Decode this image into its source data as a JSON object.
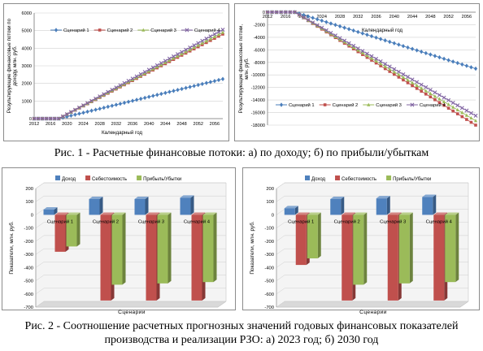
{
  "captions": {
    "fig1": "Рис. 1 - Расчетные финансовые потоки: а) по доходу; б) по прибыли/убыткам",
    "fig2_line1": "Рис. 2 - Соотношение расчетных прогнозных значений годовых финансовых показателей",
    "fig2_line2": "производства и реализации РЗО: а) 2023 год; б) 2030 год"
  },
  "chart_data": [
    {
      "type": "line",
      "title": "",
      "xlabel": "Календарный год",
      "ylabel": "Результирующие финансовые потоки по доходу, млн. руб.",
      "x_ticks": [
        2012,
        2016,
        2020,
        2024,
        2028,
        2032,
        2036,
        2040,
        2044,
        2048,
        2052,
        2056
      ],
      "xlim": [
        2012,
        2058
      ],
      "ylim": [
        0,
        6000
      ],
      "y_ticks": [
        0,
        1000,
        2000,
        3000,
        4000,
        5000,
        6000
      ],
      "grid": true,
      "legend": "top-left",
      "series": [
        {
          "name": "Сценарий 1",
          "color": "#4a7ebb",
          "marker": "diamond",
          "start": 2018,
          "end": 2058,
          "y0": 0,
          "y1": 2250
        },
        {
          "name": "Сценарий 2",
          "color": "#c0504d",
          "marker": "square",
          "start": 2018,
          "end": 2058,
          "y0": 0,
          "y1": 4800
        },
        {
          "name": "Сценарий 3",
          "color": "#9bbb59",
          "marker": "triangle",
          "start": 2018,
          "end": 2058,
          "y0": 0,
          "y1": 4900
        },
        {
          "name": "Сценарий 4",
          "color": "#8064a2",
          "marker": "x",
          "start": 2018,
          "end": 2058,
          "y0": 0,
          "y1": 5050
        }
      ]
    },
    {
      "type": "line",
      "title": "",
      "xlabel": "Календарный год",
      "ylabel": "Результирующие финансовые потоки, млн. руб.",
      "x_ticks": [
        2012,
        2016,
        2020,
        2024,
        2028,
        2032,
        2036,
        2040,
        2044,
        2048,
        2052,
        2056
      ],
      "xlim": [
        2012,
        2058
      ],
      "ylim": [
        -18000,
        0
      ],
      "y_ticks": [
        0,
        -2000,
        -4000,
        -6000,
        -8000,
        -10000,
        -12000,
        -14000,
        -16000,
        -18000
      ],
      "grid": true,
      "legend": "bottom",
      "series": [
        {
          "name": "Сценарий 1",
          "color": "#4a7ebb",
          "marker": "diamond",
          "start": 2018,
          "end": 2058,
          "y0": 0,
          "y1": -9000
        },
        {
          "name": "Сценарий 2",
          "color": "#c0504d",
          "marker": "square",
          "start": 2018,
          "end": 2058,
          "y0": 0,
          "y1": -18000
        },
        {
          "name": "Сценарий 3",
          "color": "#9bbb59",
          "marker": "triangle",
          "start": 2018,
          "end": 2058,
          "y0": 0,
          "y1": -17300
        },
        {
          "name": "Сценарий 4",
          "color": "#8064a2",
          "marker": "x",
          "start": 2018,
          "end": 2058,
          "y0": 0,
          "y1": -16500
        }
      ]
    },
    {
      "type": "bar",
      "title": "",
      "xlabel": "Сценарии",
      "ylabel": "Показатели, млн. руб.",
      "categories": [
        "Сценарий 1",
        "Сценарий 2",
        "Сценарий 3",
        "Сценарий 4"
      ],
      "ylim": [
        -700,
        200
      ],
      "y_ticks": [
        200,
        100,
        0,
        -100,
        -200,
        -300,
        -400,
        -500,
        -600,
        -700
      ],
      "legend": "top",
      "series": [
        {
          "name": "Доход",
          "color": "#4f81bd",
          "values": [
            40,
            120,
            120,
            130
          ]
        },
        {
          "name": "Себестоимость",
          "color": "#c0504d",
          "values": [
            -280,
            -650,
            -650,
            -650
          ]
        },
        {
          "name": "Прибыль/Убытки",
          "color": "#9bbb59",
          "values": [
            -240,
            -530,
            -520,
            -510
          ]
        }
      ]
    },
    {
      "type": "bar",
      "title": "",
      "xlabel": "Сценарии",
      "ylabel": "Показатели, млн. руб.",
      "categories": [
        "Сценарий 1",
        "Сценарий 2",
        "Сценарий 3",
        "Сценарий 4"
      ],
      "ylim": [
        -700,
        200
      ],
      "y_ticks": [
        200,
        100,
        0,
        -100,
        -200,
        -300,
        -400,
        -500,
        -600,
        -700
      ],
      "legend": "top",
      "series": [
        {
          "name": "Доход",
          "color": "#4f81bd",
          "values": [
            50,
            120,
            125,
            135
          ]
        },
        {
          "name": "Себестоимость",
          "color": "#c0504d",
          "values": [
            -380,
            -650,
            -650,
            -650
          ]
        },
        {
          "name": "Прибыль/Убытки",
          "color": "#9bbb59",
          "values": [
            -330,
            -530,
            -520,
            -510
          ]
        }
      ]
    }
  ]
}
